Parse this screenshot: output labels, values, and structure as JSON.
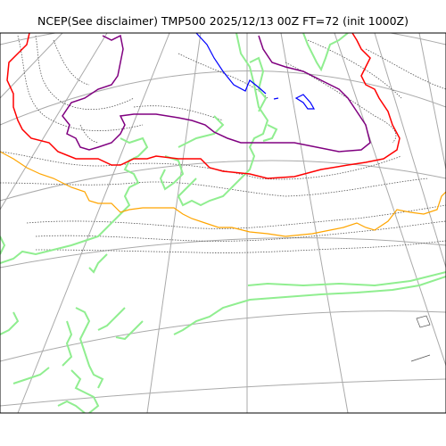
{
  "title": "NCEP(See disclaimer) TMP500 2025/12/13 00Z FT=72 (init 1000Z)",
  "colors": {
    "background": "#ffffff",
    "frame": "#000000",
    "graticule": "#aaaaaa",
    "coastline": "#90ee90",
    "isotherm_dotted": "#555555",
    "contour_purple": "#800080",
    "contour_red": "#ff0000",
    "contour_orange": "#ffa500",
    "contour_blue": "#0000ff"
  }
}
